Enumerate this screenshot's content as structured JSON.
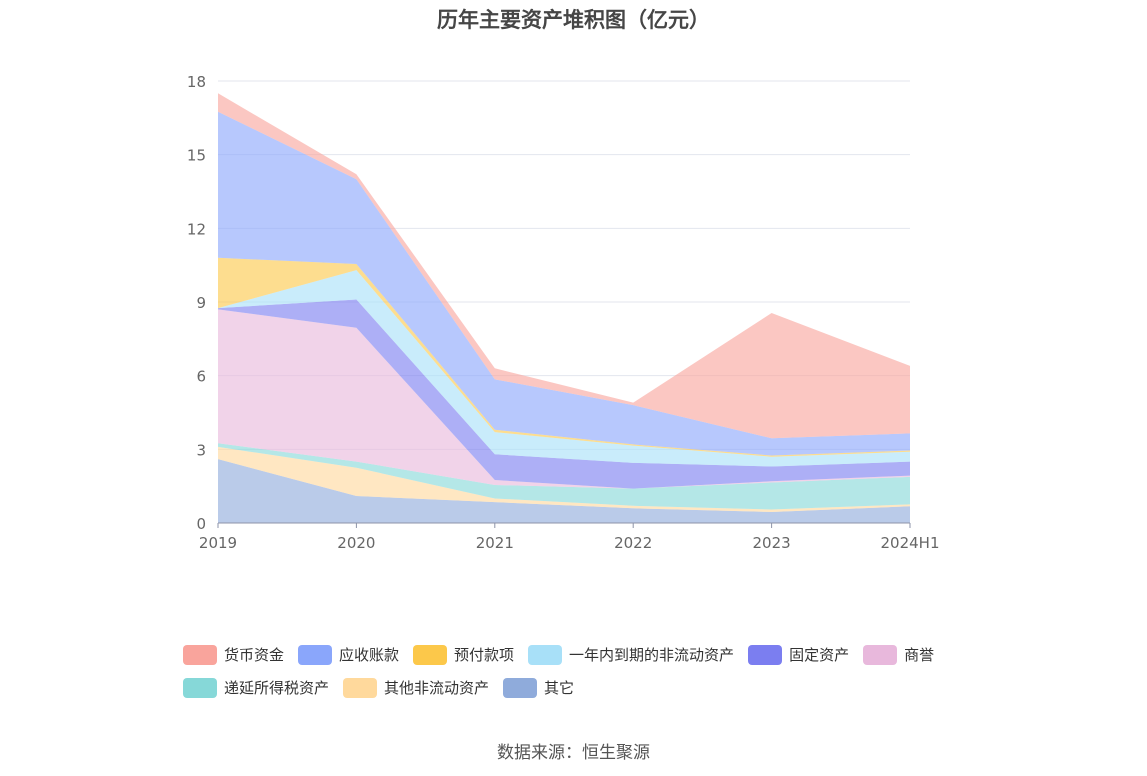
{
  "title": "历年主要资产堆积图（亿元）",
  "source": "数据来源：恒生聚源",
  "chart_data": {
    "type": "area",
    "stacked": true,
    "title": "历年主要资产堆积图（亿元）",
    "xlabel": "",
    "ylabel": "",
    "categories": [
      "2019",
      "2020",
      "2021",
      "2022",
      "2023",
      "2024H1"
    ],
    "ylim": [
      0,
      18
    ],
    "yticks": [
      0,
      3,
      6,
      9,
      12,
      15,
      18
    ],
    "grid": true,
    "legend_position": "bottom",
    "series": [
      {
        "name": "其它",
        "color": "#8fabdb",
        "values": [
          2.6,
          1.1,
          0.85,
          0.6,
          0.45,
          0.68
        ]
      },
      {
        "name": "其他非流动资产",
        "color": "#ffd99c",
        "values": [
          0.5,
          1.15,
          0.15,
          0.1,
          0.1,
          0.08
        ]
      },
      {
        "name": "递延所得税资产",
        "color": "#86d8d8",
        "values": [
          0.15,
          0.25,
          0.55,
          0.7,
          1.1,
          1.12
        ]
      },
      {
        "name": "商誉",
        "color": "#e8b8dc",
        "values": [
          5.45,
          5.45,
          0.2,
          0.0,
          0.05,
          0.05
        ]
      },
      {
        "name": "固定资产",
        "color": "#7b7ef0",
        "values": [
          0.05,
          1.15,
          1.05,
          1.05,
          0.6,
          0.57
        ]
      },
      {
        "name": "一年内到期的非流动资产",
        "color": "#a8e0f8",
        "values": [
          0.0,
          1.2,
          0.9,
          0.7,
          0.4,
          0.4
        ]
      },
      {
        "name": "预付款项",
        "color": "#fcc84a",
        "values": [
          2.05,
          0.25,
          0.1,
          0.05,
          0.05,
          0.05
        ]
      },
      {
        "name": "应收账款",
        "color": "#8aa6fb",
        "values": [
          5.95,
          3.45,
          2.05,
          1.6,
          0.7,
          0.7
        ]
      },
      {
        "name": "货币资金",
        "color": "#f9a49c",
        "values": [
          0.75,
          0.2,
          0.45,
          0.1,
          5.1,
          2.75
        ]
      }
    ]
  },
  "legend": {
    "row1": [
      "货币资金",
      "应收账款",
      "预付款项",
      "一年内到期的非流动资产",
      "固定资产",
      "商誉"
    ],
    "row2": [
      "递延所得税资产",
      "其他非流动资产",
      "其它"
    ]
  }
}
